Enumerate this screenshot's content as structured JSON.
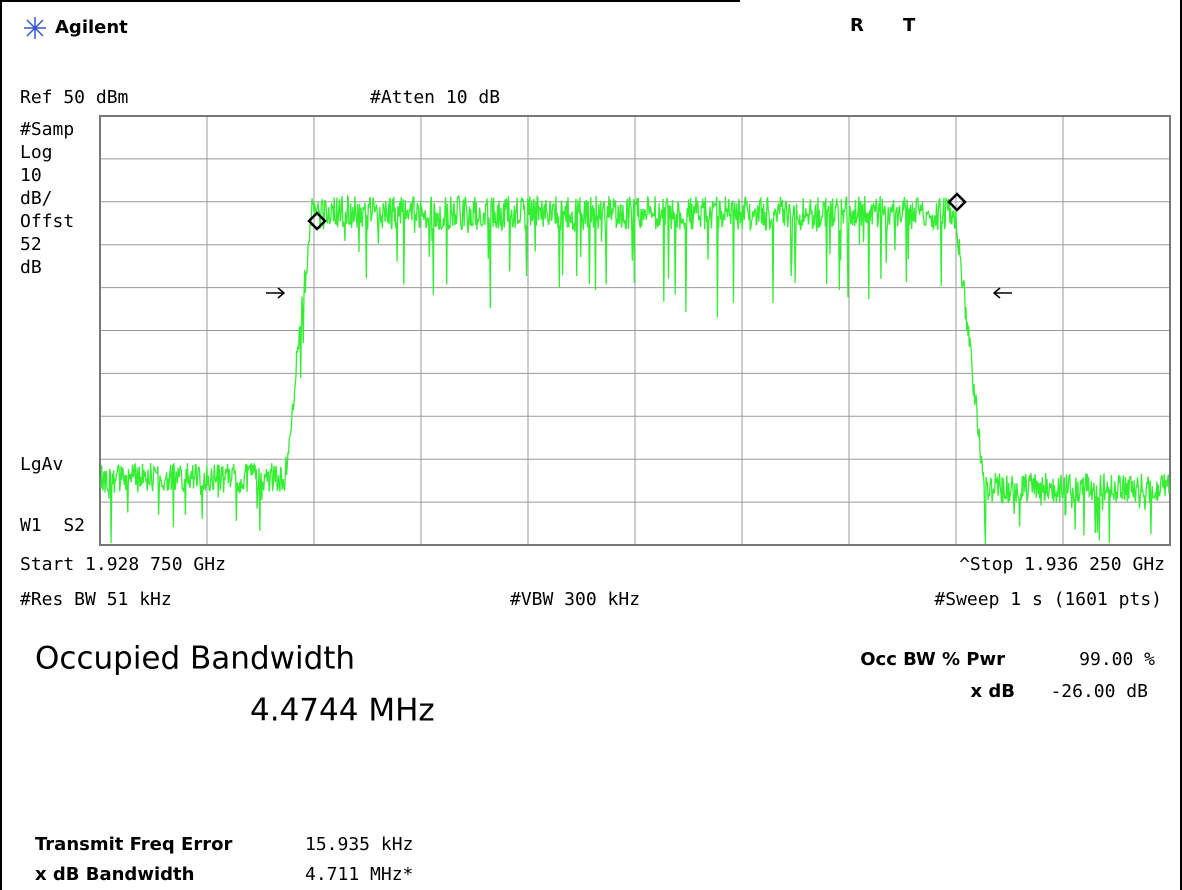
{
  "header": {
    "brand": "Agilent",
    "status": [
      "R",
      "T"
    ]
  },
  "screen": {
    "ref": "Ref 50 dBm",
    "atten": "#Atten 10 dB",
    "left_labels": [
      "#Samp",
      "Log",
      "10",
      "dB/",
      "Offst",
      "52",
      "dB"
    ],
    "avg": "LgAv",
    "window": "W1  S2",
    "start": "Start 1.928 750 GHz",
    "stop": "^Stop 1.936 250 GHz",
    "res_bw": "#Res BW 51 kHz",
    "vbw": "#VBW 300 kHz",
    "sweep": "#Sweep 1 s (1601 pts)"
  },
  "measurement": {
    "title": "Occupied Bandwidth",
    "value": "4.4744 MHz",
    "settings": [
      {
        "label": "Occ BW % Pwr",
        "value": "99.00 %"
      },
      {
        "label": "x dB",
        "value": "-26.00 dB"
      }
    ],
    "results": [
      {
        "label": "Transmit Freq Error",
        "value": "15.935 kHz"
      },
      {
        "label": "x dB Bandwidth",
        "value": "4.711 MHz*"
      }
    ]
  }
}
